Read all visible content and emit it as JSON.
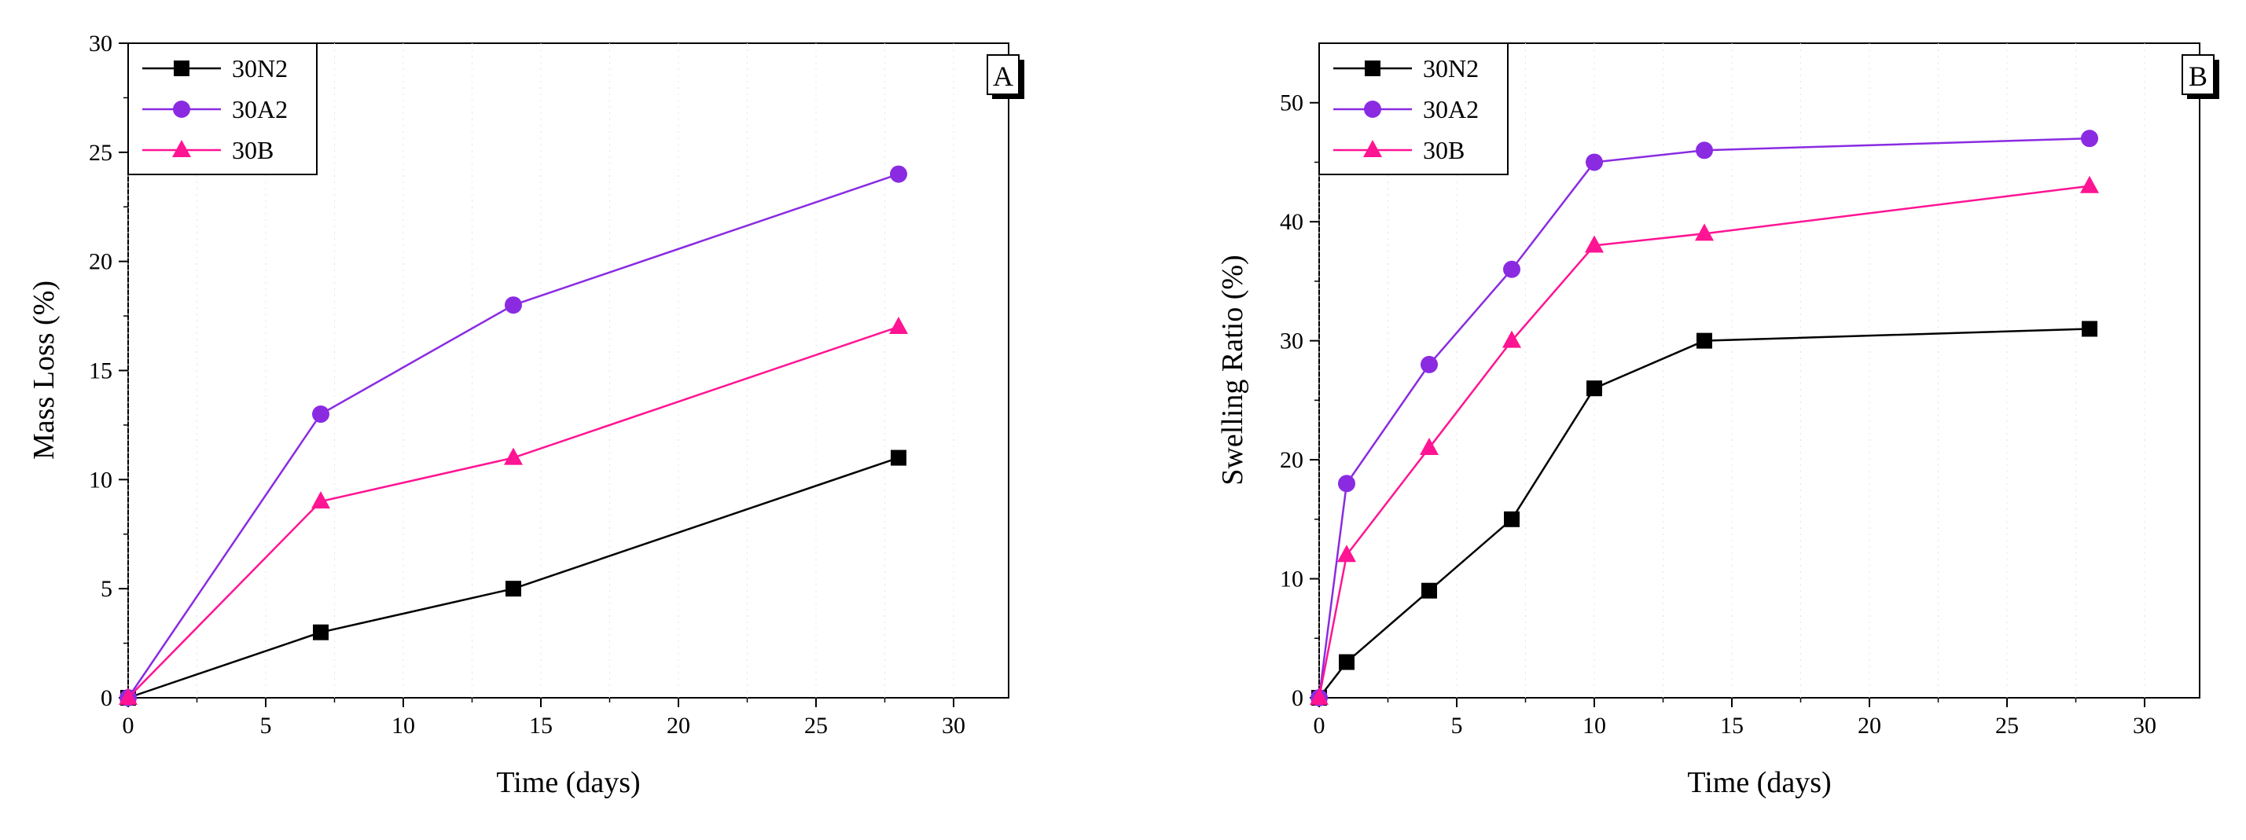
{
  "colors": {
    "30N2": "#000000",
    "30A2": "#8a2be2",
    "30B": "#ff1493",
    "axis": "#000000",
    "background": "#ffffff"
  },
  "chart_data": [
    {
      "type": "line",
      "panel_label": "A",
      "title": "",
      "xlabel": "Time (days)",
      "ylabel": "Mass Loss (%)",
      "xlim": [
        0,
        32
      ],
      "ylim": [
        0,
        30
      ],
      "xticks": [
        "0",
        "5",
        "10",
        "15",
        "20",
        "25",
        "30"
      ],
      "yticks": [
        "0",
        "5",
        "10",
        "15",
        "20",
        "25",
        "30"
      ],
      "legend_position": "top-left",
      "series": [
        {
          "name": "30N2",
          "marker": "square",
          "x": [
            0,
            7,
            14,
            28
          ],
          "y": [
            0,
            3,
            5,
            11
          ]
        },
        {
          "name": "30A2",
          "marker": "circle",
          "x": [
            0,
            7,
            14,
            28
          ],
          "y": [
            0,
            13,
            18,
            24
          ]
        },
        {
          "name": "30B",
          "marker": "triangle",
          "x": [
            0,
            7,
            14,
            28
          ],
          "y": [
            0,
            9,
            11,
            17
          ]
        }
      ]
    },
    {
      "type": "line",
      "panel_label": "B",
      "title": "",
      "xlabel": "Time (days)",
      "ylabel": "Swelling Ratio (%)",
      "xlim": [
        0,
        32
      ],
      "ylim": [
        0,
        55
      ],
      "xticks": [
        "0",
        "5",
        "10",
        "15",
        "20",
        "25",
        "30"
      ],
      "yticks": [
        "0",
        "10",
        "20",
        "30",
        "40",
        "50"
      ],
      "legend_position": "top-left",
      "series": [
        {
          "name": "30N2",
          "marker": "square",
          "x": [
            0,
            1,
            4,
            7,
            10,
            14,
            28
          ],
          "y": [
            0,
            3,
            9,
            15,
            26,
            30,
            31
          ]
        },
        {
          "name": "30A2",
          "marker": "circle",
          "x": [
            0,
            1,
            4,
            7,
            10,
            14,
            28
          ],
          "y": [
            0,
            18,
            28,
            36,
            45,
            46,
            47
          ]
        },
        {
          "name": "30B",
          "marker": "triangle",
          "x": [
            0,
            1,
            4,
            7,
            10,
            14,
            28
          ],
          "y": [
            0,
            12,
            21,
            30,
            38,
            39,
            43
          ]
        }
      ]
    }
  ]
}
